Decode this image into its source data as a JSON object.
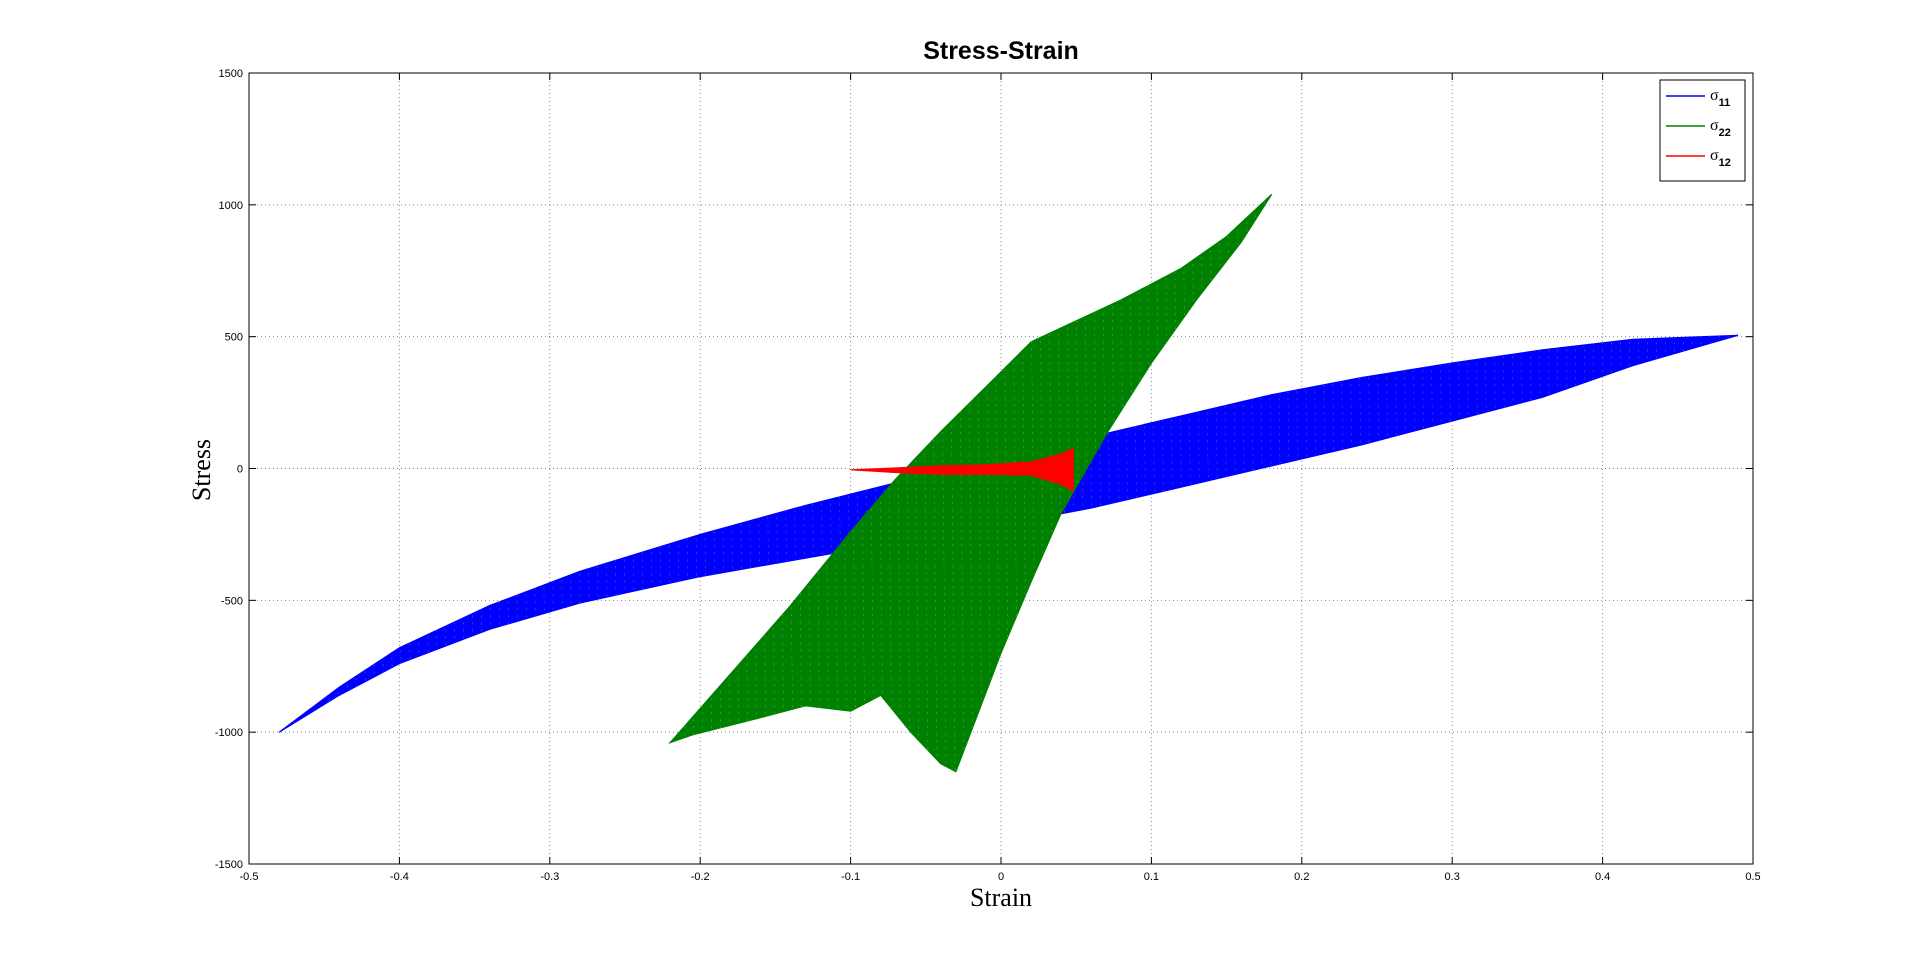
{
  "chart_data": {
    "type": "line",
    "title": "Stress-Strain",
    "xlabel": "Strain",
    "ylabel": "Stress",
    "xlim": [
      -0.5,
      0.5
    ],
    "ylim": [
      -1500,
      1500
    ],
    "xticks": [
      -0.5,
      -0.4,
      -0.3,
      -0.2,
      -0.1,
      0,
      0.1,
      0.2,
      0.3,
      0.4,
      0.5
    ],
    "xtick_labels": [
      "-0.5",
      "-0.4",
      "-0.3",
      "-0.2",
      "-0.1",
      "0",
      "0.1",
      "0.2",
      "0.3",
      "0.4",
      "0.5"
    ],
    "yticks": [
      -1500,
      -1000,
      -500,
      0,
      500,
      1000,
      1500
    ],
    "ytick_labels": [
      "-1500",
      "-1000",
      "-500",
      "0",
      "500",
      "1000",
      "1500"
    ],
    "grid": true,
    "legend_position": "top-right",
    "series": [
      {
        "name": "σ11",
        "symbol": "σ",
        "subscript": "11",
        "color": "#0000ff",
        "upper": [
          [
            -0.48,
            -1000
          ],
          [
            -0.44,
            -830
          ],
          [
            -0.4,
            -680
          ],
          [
            -0.34,
            -520
          ],
          [
            -0.28,
            -390
          ],
          [
            -0.2,
            -250
          ],
          [
            -0.13,
            -140
          ],
          [
            -0.06,
            -40
          ],
          [
            0.0,
            40
          ],
          [
            0.06,
            120
          ],
          [
            0.12,
            200
          ],
          [
            0.18,
            280
          ],
          [
            0.24,
            345
          ],
          [
            0.3,
            400
          ],
          [
            0.36,
            450
          ],
          [
            0.42,
            490
          ],
          [
            0.49,
            505
          ]
        ],
        "lower": [
          [
            -0.48,
            -1000
          ],
          [
            -0.44,
            -860
          ],
          [
            -0.4,
            -740
          ],
          [
            -0.34,
            -610
          ],
          [
            -0.28,
            -510
          ],
          [
            -0.2,
            -410
          ],
          [
            -0.13,
            -340
          ],
          [
            -0.06,
            -270
          ],
          [
            0.0,
            -215
          ],
          [
            0.06,
            -150
          ],
          [
            0.12,
            -70
          ],
          [
            0.18,
            10
          ],
          [
            0.24,
            90
          ],
          [
            0.3,
            180
          ],
          [
            0.36,
            270
          ],
          [
            0.42,
            390
          ],
          [
            0.49,
            505
          ]
        ]
      },
      {
        "name": "σ22",
        "symbol": "σ",
        "subscript": "22",
        "color": "#008000",
        "upper": [
          [
            -0.22,
            -1040
          ],
          [
            -0.18,
            -780
          ],
          [
            -0.14,
            -520
          ],
          [
            -0.1,
            -240
          ],
          [
            -0.07,
            -40
          ],
          [
            -0.04,
            140
          ],
          [
            -0.01,
            310
          ],
          [
            0.02,
            480
          ],
          [
            0.05,
            560
          ],
          [
            0.08,
            640
          ],
          [
            0.12,
            760
          ],
          [
            0.15,
            880
          ],
          [
            0.18,
            1040
          ]
        ],
        "lower": [
          [
            -0.22,
            -1040
          ],
          [
            -0.205,
            -1010
          ],
          [
            -0.17,
            -960
          ],
          [
            -0.13,
            -900
          ],
          [
            -0.1,
            -920
          ],
          [
            -0.08,
            -860
          ],
          [
            -0.06,
            -1000
          ],
          [
            -0.04,
            -1120
          ],
          [
            -0.03,
            -1150
          ],
          [
            -0.02,
            -1000
          ],
          [
            0.0,
            -700
          ],
          [
            0.02,
            -430
          ],
          [
            0.04,
            -170
          ],
          [
            0.07,
            130
          ],
          [
            0.1,
            400
          ],
          [
            0.13,
            640
          ],
          [
            0.16,
            860
          ],
          [
            0.18,
            1040
          ]
        ]
      },
      {
        "name": "σ12",
        "symbol": "σ",
        "subscript": "12",
        "color": "#ff0000",
        "upper": [
          [
            -0.1,
            -5
          ],
          [
            -0.07,
            2
          ],
          [
            -0.04,
            10
          ],
          [
            -0.01,
            14
          ],
          [
            0.02,
            25
          ],
          [
            0.04,
            55
          ],
          [
            0.048,
            75
          ]
        ],
        "lower": [
          [
            -0.1,
            -5
          ],
          [
            -0.07,
            -15
          ],
          [
            -0.04,
            -22
          ],
          [
            -0.01,
            -22
          ],
          [
            0.02,
            -25
          ],
          [
            0.04,
            -60
          ],
          [
            0.048,
            -85
          ]
        ]
      }
    ]
  }
}
